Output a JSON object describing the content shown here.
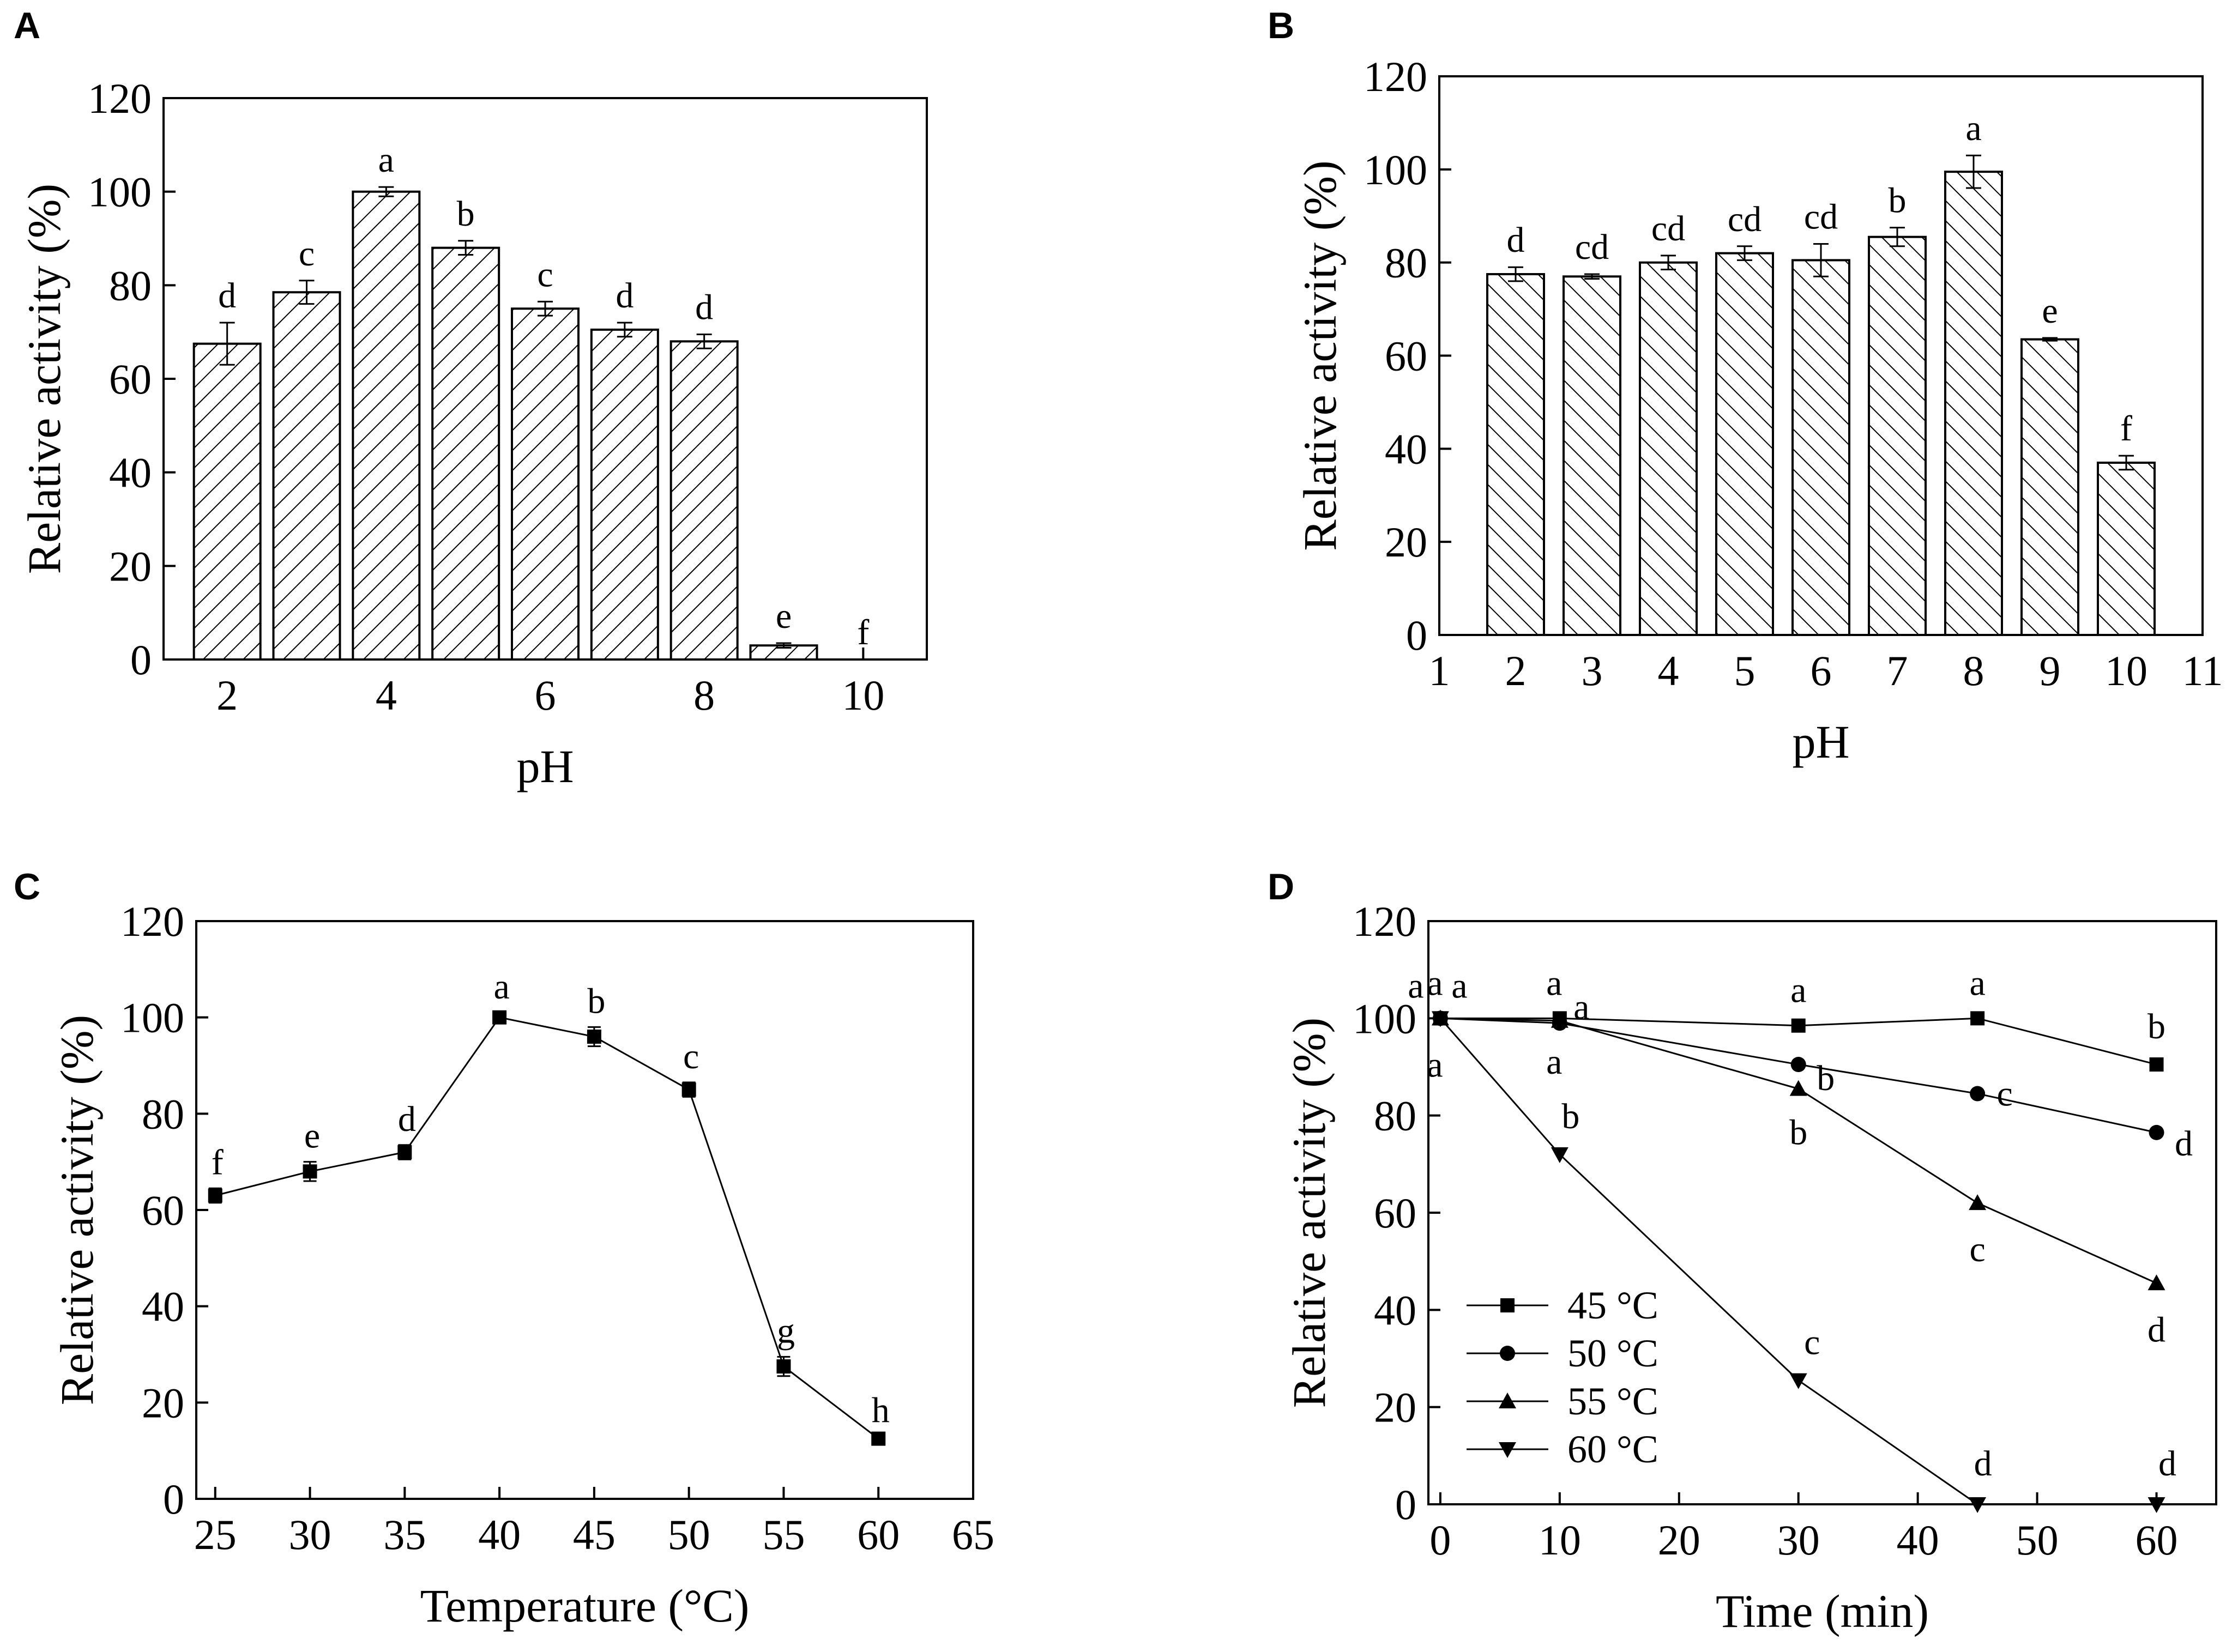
{
  "chart_data": [
    {
      "panel": "A",
      "type": "bar",
      "xlabel": "pH",
      "ylabel": "Relative activity (%)",
      "xlim": [
        1.2,
        10.8
      ],
      "ylim": [
        0,
        120
      ],
      "xticks": [
        "2",
        "4",
        "6",
        "8",
        "10"
      ],
      "yticks": [
        "0",
        "20",
        "40",
        "60",
        "80",
        "100",
        "120"
      ],
      "x": [
        2,
        3,
        4,
        5,
        6,
        7,
        8,
        9,
        10
      ],
      "values": [
        67.5,
        78.5,
        100,
        88,
        75,
        70.5,
        68,
        3,
        0
      ],
      "errors": [
        4.5,
        2.5,
        1,
        1.5,
        1.5,
        1.5,
        1.5,
        0.5,
        0
      ],
      "labels": [
        "d",
        "c",
        "a",
        "b",
        "c",
        "d",
        "d",
        "e",
        "f"
      ],
      "hatch": "diagonal-right"
    },
    {
      "panel": "B",
      "type": "bar",
      "xlabel": "pH",
      "ylabel": "Relative activity (%)",
      "xlim": [
        1,
        11
      ],
      "ylim": [
        0,
        120
      ],
      "xticks": [
        "1",
        "2",
        "3",
        "4",
        "5",
        "6",
        "7",
        "8",
        "9",
        "10",
        "11"
      ],
      "yticks": [
        "0",
        "20",
        "40",
        "60",
        "80",
        "100",
        "120"
      ],
      "x": [
        2,
        3,
        4,
        5,
        6,
        7,
        8,
        9,
        10
      ],
      "values": [
        77.5,
        77,
        80,
        82,
        80.5,
        85.5,
        99.5,
        63.5,
        37
      ],
      "errors": [
        1.5,
        0.5,
        1.5,
        1.5,
        3.5,
        2,
        3.5,
        0.3,
        1.5
      ],
      "labels": [
        "d",
        "cd",
        "cd",
        "cd",
        "cd",
        "b",
        "a",
        "e",
        "f"
      ],
      "hatch": "diagonal-left"
    },
    {
      "panel": "C",
      "type": "line",
      "xlabel": "Temperature (°C)",
      "ylabel": "Relative activity (%)",
      "xlim": [
        24,
        65
      ],
      "ylim": [
        0,
        120
      ],
      "xticks": [
        "25",
        "30",
        "35",
        "40",
        "45",
        "50",
        "55",
        "60",
        "65"
      ],
      "yticks": [
        "0",
        "20",
        "40",
        "60",
        "80",
        "100",
        "120"
      ],
      "x": [
        25,
        30,
        35,
        40,
        45,
        50,
        55,
        60
      ],
      "values": [
        63,
        68,
        72,
        100,
        96,
        85,
        27.5,
        12.5
      ],
      "errors": [
        1.5,
        2,
        1.5,
        1,
        2,
        1.5,
        2,
        0.5
      ],
      "labels": [
        "f",
        "e",
        "d",
        "a",
        "b",
        "c",
        "g",
        "h"
      ]
    },
    {
      "panel": "D",
      "type": "line",
      "xlabel": "Time (min)",
      "ylabel": "Relative activity (%)",
      "xlim": [
        -1,
        65
      ],
      "ylim": [
        0,
        120
      ],
      "xticks": [
        "0",
        "10",
        "20",
        "30",
        "40",
        "50",
        "60"
      ],
      "yticks": [
        "0",
        "20",
        "40",
        "60",
        "80",
        "100",
        "120"
      ],
      "series": [
        {
          "name": "45 °C",
          "marker": "square",
          "x": [
            0,
            10,
            30,
            45,
            60
          ],
          "values": [
            100,
            100,
            98.5,
            100,
            90.5
          ],
          "labels": [
            "a",
            "a",
            "a",
            "a",
            "b"
          ]
        },
        {
          "name": "50 °C",
          "marker": "circle",
          "x": [
            0,
            10,
            30,
            45,
            60
          ],
          "values": [
            100,
            99,
            90.5,
            84.5,
            76.5
          ],
          "labels": [
            "a",
            "a",
            "b",
            "c",
            "d"
          ]
        },
        {
          "name": "55 °C",
          "marker": "triangle-up",
          "x": [
            0,
            10,
            30,
            45,
            60
          ],
          "values": [
            100,
            99.5,
            85.5,
            62,
            45.5
          ],
          "labels": [
            "a",
            "a",
            "b",
            "c",
            "d"
          ]
        },
        {
          "name": "60 °C",
          "marker": "triangle-down",
          "x": [
            0,
            10,
            30,
            45,
            60
          ],
          "values": [
            100,
            72,
            25.5,
            0,
            0
          ],
          "labels": [
            "a",
            "b",
            "c",
            "d",
            "d"
          ]
        }
      ]
    }
  ]
}
